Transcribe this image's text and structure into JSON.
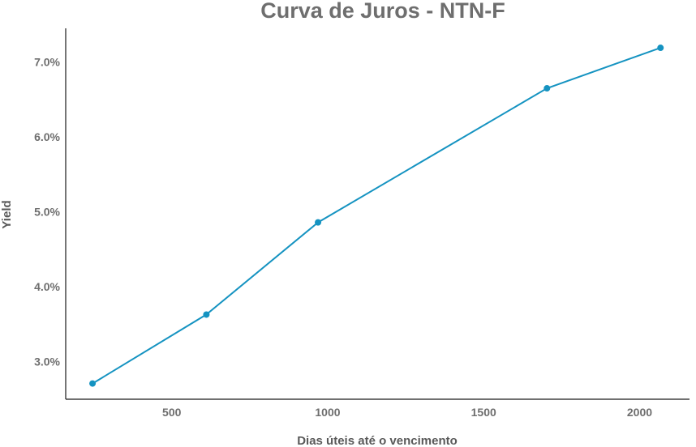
{
  "chart_data": {
    "type": "line",
    "title": "Curva de Juros - NTN-F",
    "xlabel": "Dias úteis até o vencimento",
    "ylabel": "Yield",
    "x_ticks": [
      500,
      1000,
      1500,
      2000
    ],
    "x_tick_labels": [
      "500",
      "1000",
      "1500",
      "2000"
    ],
    "y_ticks": [
      3.0,
      4.0,
      5.0,
      6.0,
      7.0
    ],
    "y_tick_labels": [
      "3.0%",
      "4.0%",
      "5.0%",
      "6.0%",
      "7.0%"
    ],
    "xlim": [
      160,
      2160
    ],
    "ylim": [
      2.5,
      7.45
    ],
    "grid": false,
    "legend": "none",
    "color": "#1593c1",
    "series": [
      {
        "x": [
          246,
          611,
          969,
          1703,
          2067
        ],
        "y": [
          2.71,
          3.63,
          4.86,
          6.65,
          7.19
        ]
      }
    ]
  }
}
